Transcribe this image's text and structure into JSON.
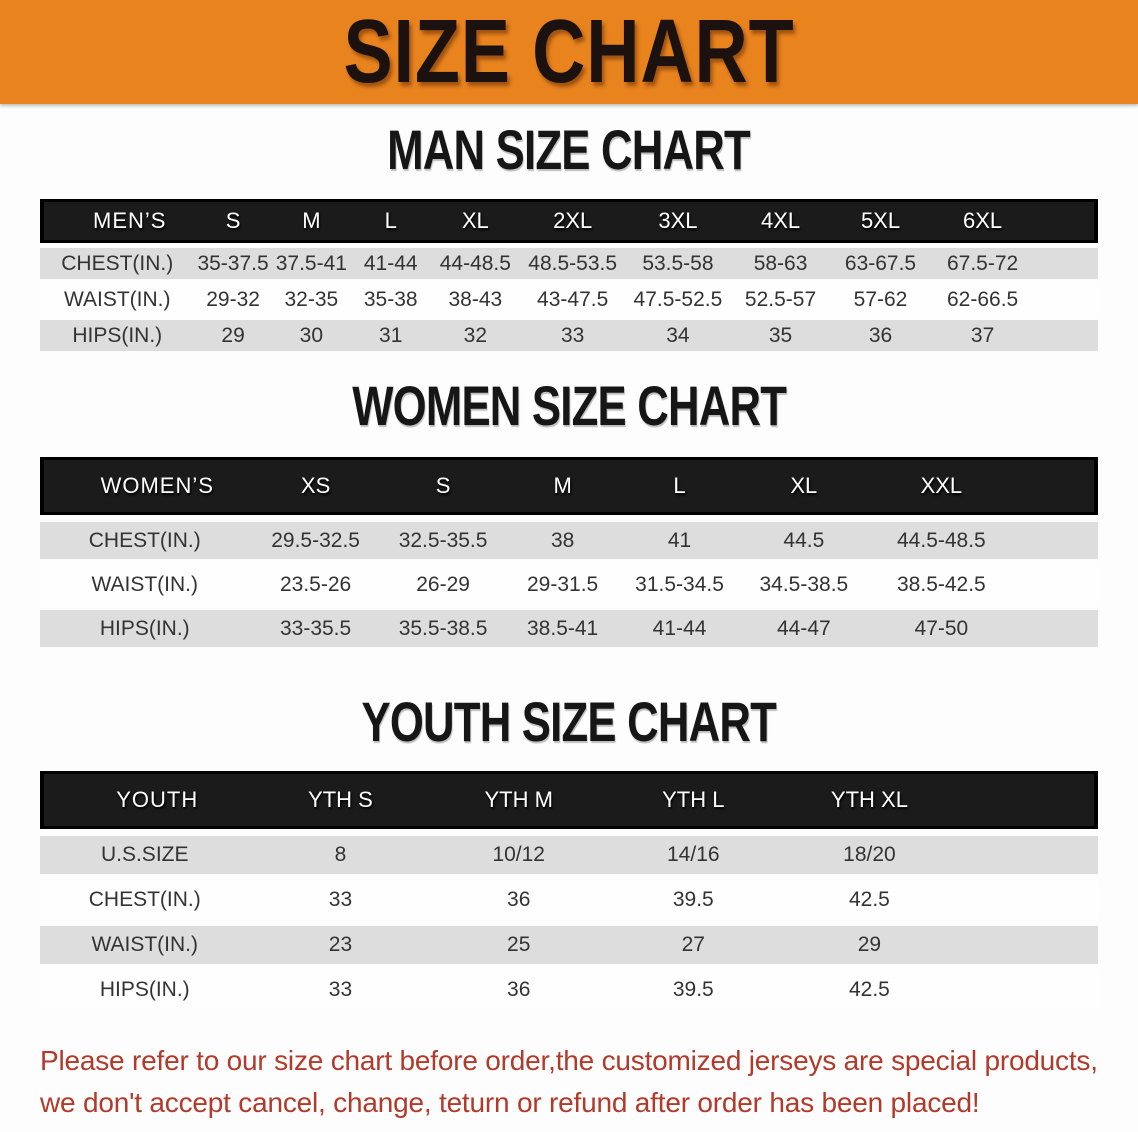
{
  "banner": {
    "title": "SIZE CHART"
  },
  "sections": [
    {
      "id": "men",
      "heading": "MAN SIZE CHART",
      "corner_label": "MEN’S",
      "columns": [
        "S",
        "M",
        "L",
        "XL",
        "2XL",
        "3XL",
        "4XL",
        "5XL",
        "6XL"
      ],
      "rows": [
        {
          "label": "CHEST(IN.)",
          "values": [
            "35-37.5",
            "37.5-41",
            "41-44",
            "44-48.5",
            "48.5-53.5",
            "53.5-58",
            "58-63",
            "63-67.5",
            "67.5-72"
          ]
        },
        {
          "label": "WAIST(IN.)",
          "values": [
            "29-32",
            "32-35",
            "35-38",
            "38-43",
            "43-47.5",
            "47.5-52.5",
            "52.5-57",
            "57-62",
            "62-66.5"
          ]
        },
        {
          "label": "HIPS(IN.)",
          "values": [
            "29",
            "30",
            "31",
            "32",
            "33",
            "34",
            "35",
            "36",
            "37"
          ]
        }
      ]
    },
    {
      "id": "women",
      "heading": "WOMEN SIZE CHART",
      "corner_label": "WOMEN’S",
      "columns": [
        "XS",
        "S",
        "M",
        "L",
        "XL",
        "XXL"
      ],
      "rows": [
        {
          "label": "CHEST(IN.)",
          "values": [
            "29.5-32.5",
            "32.5-35.5",
            "38",
            "41",
            "44.5",
            "44.5-48.5"
          ]
        },
        {
          "label": "WAIST(IN.)",
          "values": [
            "23.5-26",
            "26-29",
            "29-31.5",
            "31.5-34.5",
            "34.5-38.5",
            "38.5-42.5"
          ]
        },
        {
          "label": "HIPS(IN.)",
          "values": [
            "33-35.5",
            "35.5-38.5",
            "38.5-41",
            "41-44",
            "44-47",
            "47-50"
          ]
        }
      ]
    },
    {
      "id": "youth",
      "heading": "YOUTH SIZE CHART",
      "corner_label": "YOUTH",
      "columns": [
        "YTH S",
        "YTH M",
        "YTH L",
        "YTH XL"
      ],
      "rows": [
        {
          "label": "U.S.SIZE",
          "values": [
            "8",
            "10/12",
            "14/16",
            "18/20"
          ]
        },
        {
          "label": "CHEST(IN.)",
          "values": [
            "33",
            "36",
            "39.5",
            "42.5"
          ]
        },
        {
          "label": "WAIST(IN.)",
          "values": [
            "23",
            "25",
            "27",
            "29"
          ]
        },
        {
          "label": "HIPS(IN.)",
          "values": [
            "33",
            "36",
            "39.5",
            "42.5"
          ]
        }
      ]
    }
  ],
  "disclaimer": {
    "line1": "Please refer to our size chart before order,the customized jerseys are special products,",
    "line2": "we don't accept cancel, change, teturn or refund after order has been placed!"
  },
  "colors": {
    "banner_bg": "#E8831E",
    "table_header_bg": "#1B1B1B",
    "row_gray": "#DDDDDD",
    "disclaimer_red": "#B13A2B"
  }
}
